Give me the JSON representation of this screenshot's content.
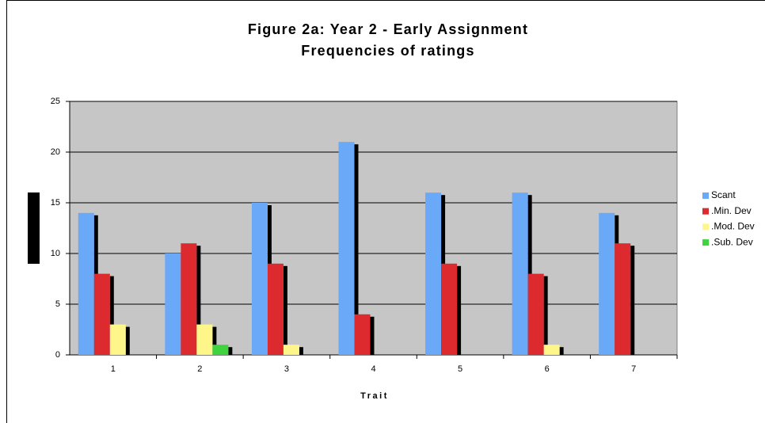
{
  "chart_data": {
    "type": "bar",
    "title": [
      "Figure 2a: Year 2 - Early Assignment",
      "Frequencies of ratings"
    ],
    "x_label": "Trait",
    "categories": [
      "1",
      "2",
      "3",
      "4",
      "5",
      "6",
      "7"
    ],
    "series": [
      {
        "name": "Scant",
        "color": "#6aa8f8",
        "values": [
          14,
          10,
          15,
          21,
          16,
          16,
          14
        ]
      },
      {
        "name": ".Min. Dev",
        "color": "#dc2a2e",
        "values": [
          8,
          11,
          9,
          4,
          9,
          8,
          11
        ]
      },
      {
        "name": ".Mod. Dev",
        "color": "#fff68a",
        "values": [
          3,
          3,
          1,
          0,
          0,
          1,
          0
        ]
      },
      {
        "name": ".Sub. Dev",
        "color": "#3fd43f",
        "values": [
          0,
          1,
          0,
          0,
          0,
          0,
          0
        ]
      }
    ],
    "ylim": [
      0,
      25
    ],
    "yticks": [
      0,
      5,
      10,
      15,
      20,
      25
    ],
    "grid": true,
    "plot_background": "#c6c6c6",
    "legend": "right"
  }
}
